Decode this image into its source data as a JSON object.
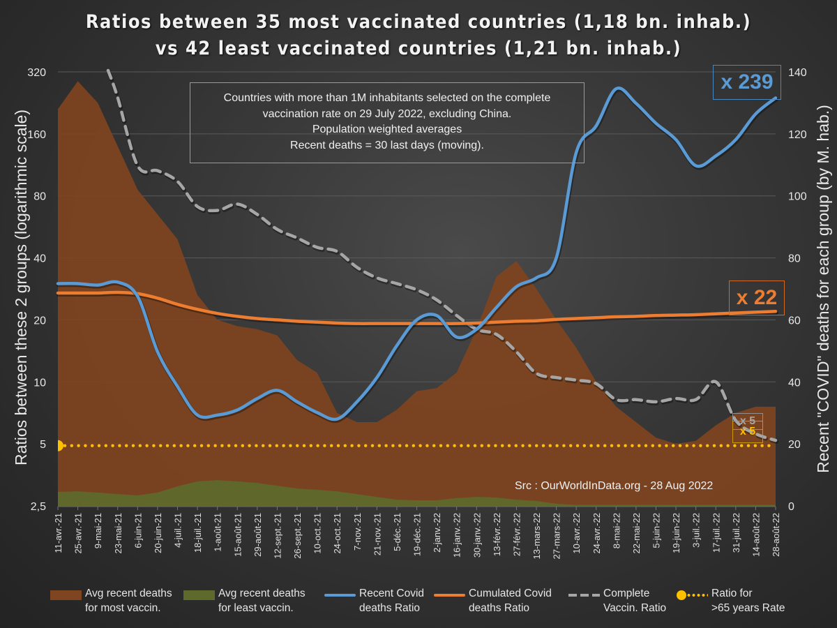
{
  "header": {
    "title_line1": "Ratios between 35 most vaccinated countries (1,18 bn. inhab.)",
    "title_line2": "vs 42 least vaccinated countries (1,21 bn. inhab.)"
  },
  "note_box": {
    "line1": "Countries with more than 1M inhabitants selected on the complete",
    "line2": "vaccination rate on 29 July 2022, excluding China.",
    "line3": "Population weighted averages",
    "line4": "Recent deaths = 30 last days (moving)."
  },
  "callouts": {
    "recent_ratio": "x 239",
    "cumulated_ratio": "x 22",
    "vaccin_ratio": "x 5",
    "over65_ratio": "x 5"
  },
  "source": "Src : OurWorldInData.org - 28 Aug 2022",
  "colors": {
    "most_vaccin_area": "#7f4420",
    "least_vaccin_area": "#5e6a2c",
    "recent_ratio_line": "#5b9bd5",
    "cumulated_ratio_line": "#ed7d31",
    "complete_vaccin_line": "#a6a6a6",
    "over65_line": "#ffc000"
  },
  "legend": [
    {
      "key": "most",
      "line1": "Avg recent deaths",
      "line2": "for most vaccin."
    },
    {
      "key": "least",
      "line1": "Avg recent deaths",
      "line2": "for least vaccin."
    },
    {
      "key": "recent",
      "line1": "Recent Covid",
      "line2": "deaths Ratio"
    },
    {
      "key": "cumulated",
      "line1": "Cumulated Covid",
      "line2": "deaths Ratio"
    },
    {
      "key": "vaccin",
      "line1": "Complete",
      "line2": "Vaccin. Ratio"
    },
    {
      "key": "over65",
      "line1": "Ratio for",
      "line2": ">65 years Rate"
    }
  ],
  "chart_data": {
    "type": "line",
    "title": "Ratios between 35 most vaccinated countries (1,18 bn. inhab.) vs 42 least vaccinated countries (1,21 bn. inhab.)",
    "ylabel": "Ratios between these 2 groups (logarithmic scale)",
    "y2label": "Recent \"COVID\" deaths for each group (by M. hab.)",
    "xlabel": "",
    "yscale": "log2",
    "ylim": [
      2.5,
      320
    ],
    "yticks": [
      "2,5",
      "5",
      "10",
      "20",
      "40",
      "80",
      "160",
      "320"
    ],
    "ytick_values": [
      2.5,
      5,
      10,
      20,
      40,
      80,
      160,
      320
    ],
    "y2lim": [
      0,
      140
    ],
    "y2ticks": [
      0,
      20,
      40,
      60,
      80,
      100,
      120,
      140
    ],
    "grid": true,
    "legend_position": "bottom",
    "categories": [
      "11-avr.-21",
      "25-avr.-21",
      "9-mai-21",
      "23-mai-21",
      "6-juin-21",
      "20-juin-21",
      "4-juil.-21",
      "18-juil.-21",
      "1-août-21",
      "15-août-21",
      "29-août-21",
      "12-sept.-21",
      "26-sept.-21",
      "10-oct.-21",
      "24-oct.-21",
      "7-nov.-21",
      "21-nov.-21",
      "5-déc.-21",
      "19-déc.-21",
      "2-janv.-22",
      "16-janv.-22",
      "30-janv.-22",
      "13-févr.-22",
      "27-févr.-22",
      "13-mars-22",
      "27-mars-22",
      "10-avr.-22",
      "24-avr.-22",
      "8-mai-22",
      "22-mai-22",
      "5-juin-22",
      "19-juin-22",
      "3-juil.-22",
      "17-juil.-22",
      "31-juil.-22",
      "14-août-22",
      "28-août-22"
    ],
    "series": [
      {
        "name": "Avg recent deaths for most vaccin.",
        "type": "area",
        "axis": "right",
        "values": [
          128,
          137,
          130,
          116,
          102,
          94,
          86,
          68,
          60,
          58,
          57,
          55,
          47,
          43,
          30,
          27,
          27,
          31,
          37,
          38,
          43,
          57,
          74,
          79,
          70,
          60,
          51,
          40,
          32,
          27,
          22,
          20,
          21,
          26,
          30,
          32,
          32
        ]
      },
      {
        "name": "Avg recent deaths for least vaccin.",
        "type": "area",
        "axis": "right",
        "values": [
          4.5,
          4.7,
          4.3,
          3.8,
          3.4,
          4.3,
          6.3,
          7.9,
          8.3,
          7.9,
          7.4,
          6.5,
          5.6,
          5.2,
          4.7,
          3.8,
          2.9,
          2.0,
          1.8,
          1.8,
          2.5,
          2.9,
          2.7,
          2.0,
          1.6,
          0.7,
          0.3,
          0.3,
          0.3,
          0.3,
          0.3,
          0.3,
          0.3,
          0.3,
          0.3,
          0.3,
          0.3
        ]
      },
      {
        "name": "Recent Covid deaths Ratio",
        "type": "line",
        "axis": "left",
        "values": [
          30,
          30,
          29.5,
          30.5,
          26,
          14,
          9.5,
          6.9,
          6.9,
          7.3,
          8.3,
          9.1,
          8,
          7.1,
          6.6,
          8,
          10.5,
          15,
          20,
          21,
          16.5,
          18,
          23,
          29,
          32,
          40,
          130,
          175,
          265,
          225,
          180,
          150,
          112,
          125,
          150,
          200,
          239
        ]
      },
      {
        "name": "Cumulated Covid deaths Ratio",
        "type": "line",
        "axis": "left",
        "values": [
          27,
          27,
          27,
          27.2,
          26.8,
          25.5,
          23.8,
          22.5,
          21.5,
          20.8,
          20.3,
          20,
          19.7,
          19.5,
          19.3,
          19.2,
          19.2,
          19.2,
          19.2,
          19.2,
          19.2,
          19.3,
          19.5,
          19.7,
          19.8,
          20.1,
          20.3,
          20.5,
          20.7,
          20.8,
          21,
          21.1,
          21.2,
          21.4,
          21.6,
          21.8,
          22
        ]
      },
      {
        "name": "Complete Vaccin. Ratio",
        "type": "line",
        "dash": true,
        "axis": "left",
        "values": [
          null,
          null,
          null,
          240,
          112,
          106,
          94,
          71,
          68,
          73,
          65,
          55,
          50,
          45,
          43,
          36,
          32,
          30,
          28,
          25,
          21,
          18,
          17,
          14,
          11,
          10.5,
          10.2,
          9.8,
          8.2,
          8.2,
          8,
          8.3,
          8.2,
          10,
          6.5,
          5.6,
          5.2
        ]
      },
      {
        "name": "Ratio for >65 years Rate",
        "type": "line",
        "dotted": true,
        "axis": "left",
        "values": [
          4.9,
          4.9,
          4.9,
          4.9,
          4.9,
          4.9,
          4.9,
          4.9,
          4.9,
          4.9,
          4.9,
          4.9,
          4.9,
          4.9,
          4.9,
          4.9,
          4.9,
          4.9,
          4.9,
          4.9,
          4.9,
          4.9,
          4.9,
          4.9,
          4.9,
          4.9,
          4.9,
          4.9,
          4.9,
          4.9,
          4.9,
          4.9,
          4.9,
          4.9,
          4.9,
          4.9,
          4.9
        ]
      }
    ]
  }
}
